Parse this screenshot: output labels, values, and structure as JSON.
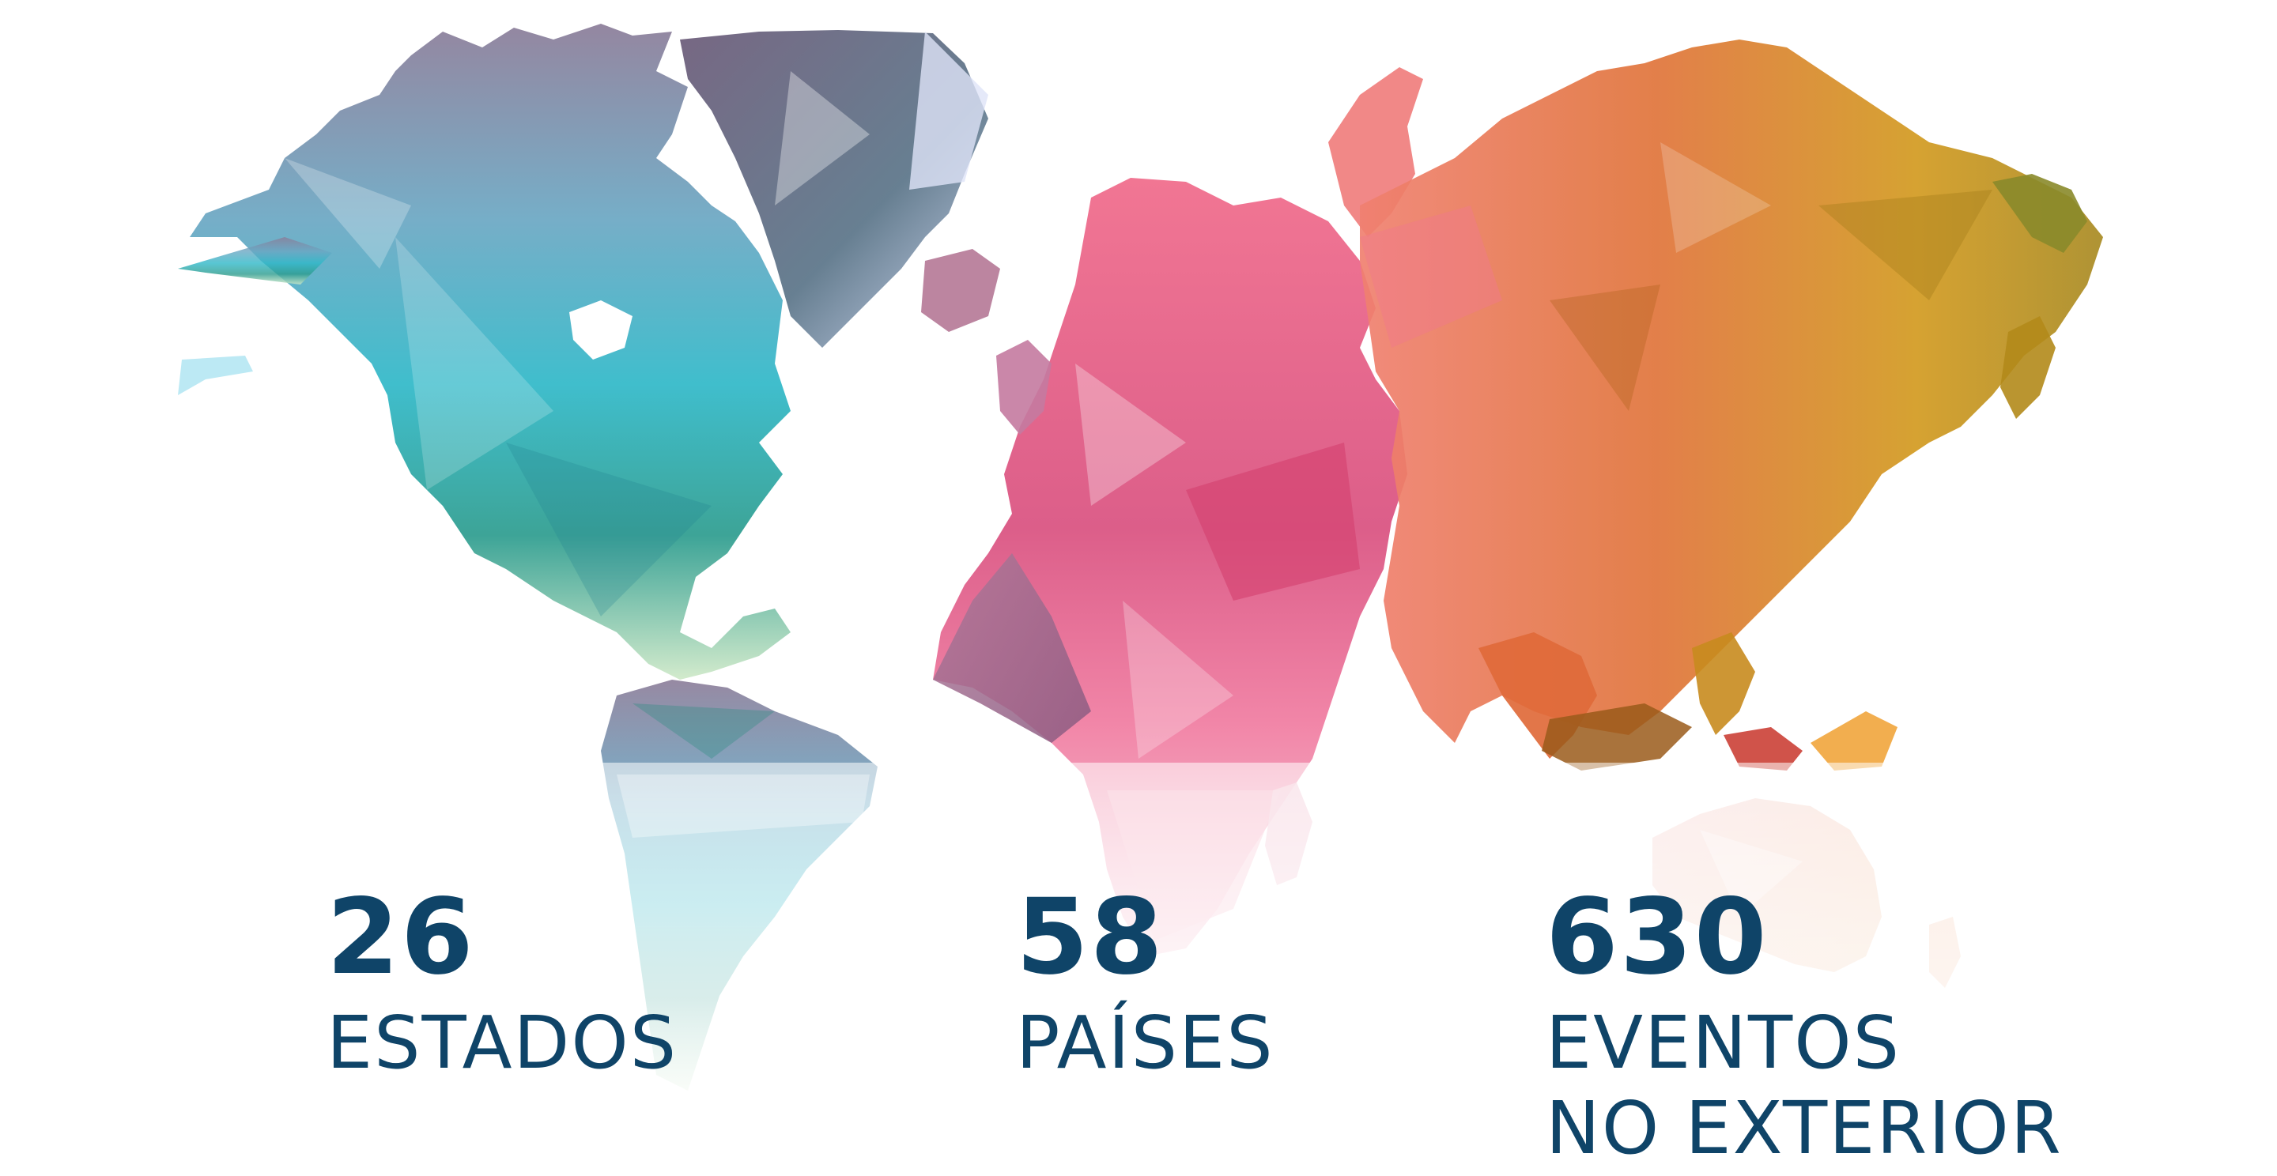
{
  "stats": {
    "states": {
      "number": "26",
      "label": "ESTADOS"
    },
    "countries": {
      "number": "58",
      "label": "PAÍSES"
    },
    "events": {
      "number": "630",
      "label_line1": "EVENTOS",
      "label_line2": "NO EXTERIOR"
    }
  },
  "colors": {
    "text": "#0f4468",
    "americas_top": "#7a6f8f",
    "americas_mid": "#2fb5c6",
    "americas_bottom": "#3aa28a",
    "europe_africa": "#e94f7f",
    "asia": "#e07a3a",
    "east_asia": "#c59a1a"
  },
  "icons": {
    "map": "world-map-lowpoly"
  }
}
